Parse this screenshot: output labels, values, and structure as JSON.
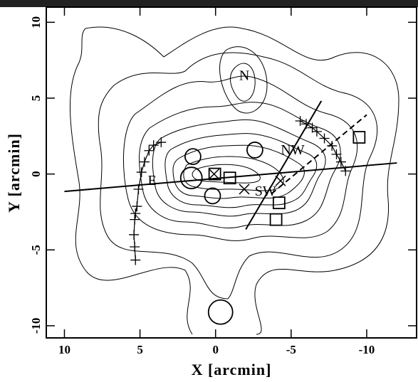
{
  "chart_data": {
    "type": "scatter",
    "x_label": "X [arcmin]",
    "y_label": "Y [arcmin]",
    "xlim": [
      11.2,
      -13.3
    ],
    "ylim": [
      -10.8,
      11.0
    ],
    "xticks": [
      10,
      5,
      0,
      -5,
      -10
    ],
    "yticks": [
      -10,
      -5,
      0,
      5,
      10
    ],
    "series": [
      {
        "marker": "circle",
        "x": [
          1.5,
          1.6,
          0.2,
          -2.6,
          -0.33
        ],
        "y": [
          1.15,
          -0.26,
          -1.44,
          1.58,
          -9.1
        ],
        "size": [
          11,
          15,
          11,
          11,
          17
        ]
      },
      {
        "marker": "square",
        "x": [
          0.05,
          -0.94,
          -4.2,
          -4.0,
          -9.5
        ],
        "y": [
          0.0,
          -0.26,
          -1.9,
          -3.0,
          2.42
        ]
      },
      {
        "marker": "cross",
        "x": [
          0.1,
          -1.9,
          -4.3
        ],
        "y": [
          0.0,
          -1.0,
          -0.45
        ]
      },
      {
        "marker": "plus",
        "x": [
          5.3,
          5.35,
          5.4,
          5.35,
          5.3,
          5.2,
          5.1,
          4.9,
          4.7,
          4.4,
          4.1,
          3.6
        ],
        "y": [
          -5.67,
          -4.8,
          -4.0,
          -3.0,
          -2.6,
          -2.13,
          -1.0,
          0.12,
          0.8,
          1.54,
          1.9,
          2.09
        ]
      },
      {
        "marker": "plus",
        "x": [
          -5.6,
          -6.0,
          -6.4,
          -6.7,
          -7.2,
          -7.7,
          -8.0,
          -8.3,
          -8.6
        ],
        "y": [
          3.5,
          3.3,
          3.05,
          2.8,
          2.35,
          1.86,
          1.3,
          0.8,
          0.2
        ]
      }
    ],
    "lines": [
      {
        "style": "solid",
        "x": [
          10,
          -12
        ],
        "y": [
          -1.15,
          0.73
        ]
      },
      {
        "style": "solid",
        "x": [
          -2.0,
          -7.0
        ],
        "y": [
          -3.65,
          4.82
        ]
      },
      {
        "style": "dashed",
        "x": [
          -3.7,
          -10.0
        ],
        "y": [
          -1.3,
          3.9
        ]
      }
    ],
    "annotations": [
      {
        "text": "N",
        "x": -1.9,
        "y": 6.4
      },
      {
        "text": "NW",
        "x": -5.1,
        "y": 1.5
      },
      {
        "text": "SW",
        "x": -3.3,
        "y": -1.2
      },
      {
        "text": "E",
        "x": 4.2,
        "y": -0.5
      }
    ]
  }
}
